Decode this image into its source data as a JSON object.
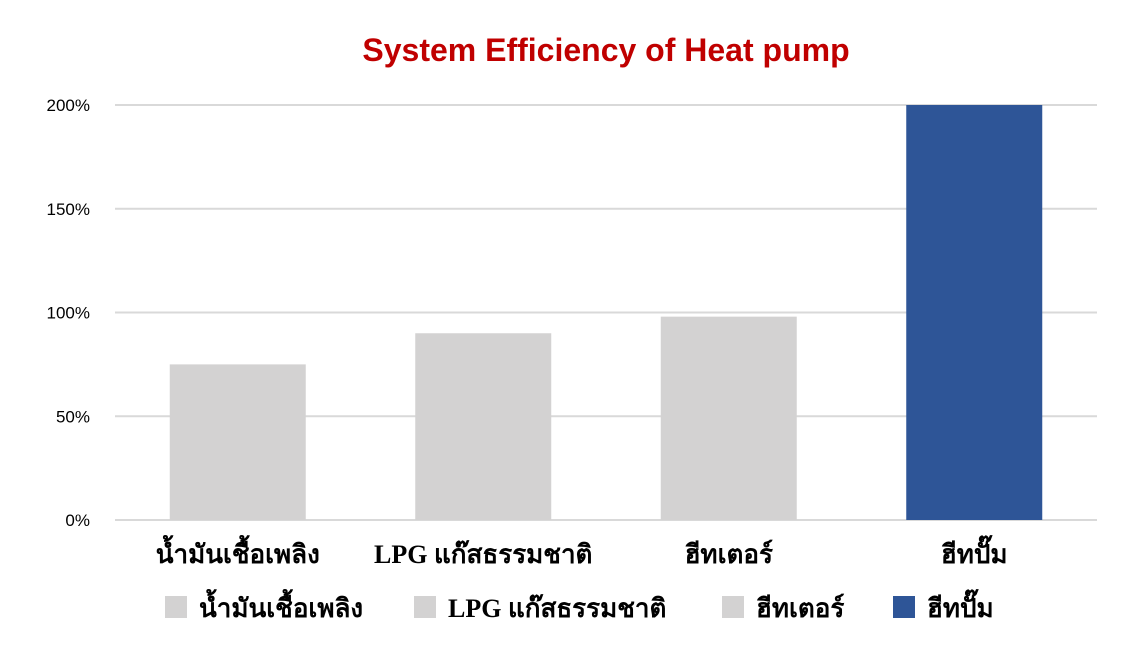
{
  "chart_data": {
    "type": "bar",
    "title": "System Efficiency of Heat pump",
    "title_color": "#c00000",
    "categories": [
      "น้ำมันเชื้อเพลิง",
      "LPG แก๊สธรรมชาติ",
      "ฮีทเตอร์",
      "ฮีทปั๊ม"
    ],
    "values": [
      75,
      90,
      98,
      200
    ],
    "colors": [
      "#d3d2d2",
      "#d3d2d2",
      "#d3d2d2",
      "#2e5597"
    ],
    "y_ticks": [
      "0%",
      "50%",
      "100%",
      "150%",
      "200%"
    ],
    "ylim": [
      0,
      200
    ],
    "grid": true,
    "legend": {
      "position": "bottom",
      "entries": [
        "น้ำมันเชื้อเพลิง",
        "LPG แก๊สธรรมชาติ",
        "ฮีทเตอร์",
        "ฮีทปั๊ม"
      ]
    }
  }
}
